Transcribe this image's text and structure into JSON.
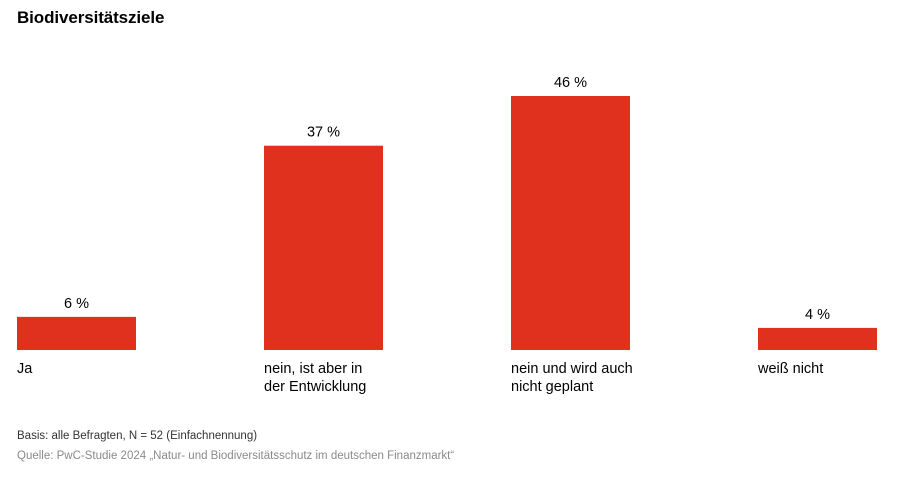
{
  "chart_data": {
    "type": "bar",
    "title": "Biodiversitätsziele",
    "categories": [
      "Ja",
      "nein, ist aber in der Entwicklung",
      "nein und wird auch nicht geplant",
      "weiß nicht"
    ],
    "category_lines": [
      [
        "Ja"
      ],
      [
        "nein, ist aber in",
        "der Entwicklung"
      ],
      [
        "nein und wird auch",
        "nicht geplant"
      ],
      [
        "weiß nicht"
      ]
    ],
    "values": [
      6,
      37,
      46,
      4
    ],
    "value_labels": [
      "6 %",
      "37 %",
      "46 %",
      "4 %"
    ],
    "unit": "%",
    "ylim": [
      0,
      46
    ],
    "grid": false,
    "legend": "none",
    "bar_color": "#e0301e"
  },
  "footer": {
    "basis": "Basis: alle Befragten, N = 52 (Einfachnennung)",
    "source": "Quelle: PwC-Studie 2024 „Natur- und Biodiversitätsschutz im deutschen Finanzmarkt“"
  }
}
